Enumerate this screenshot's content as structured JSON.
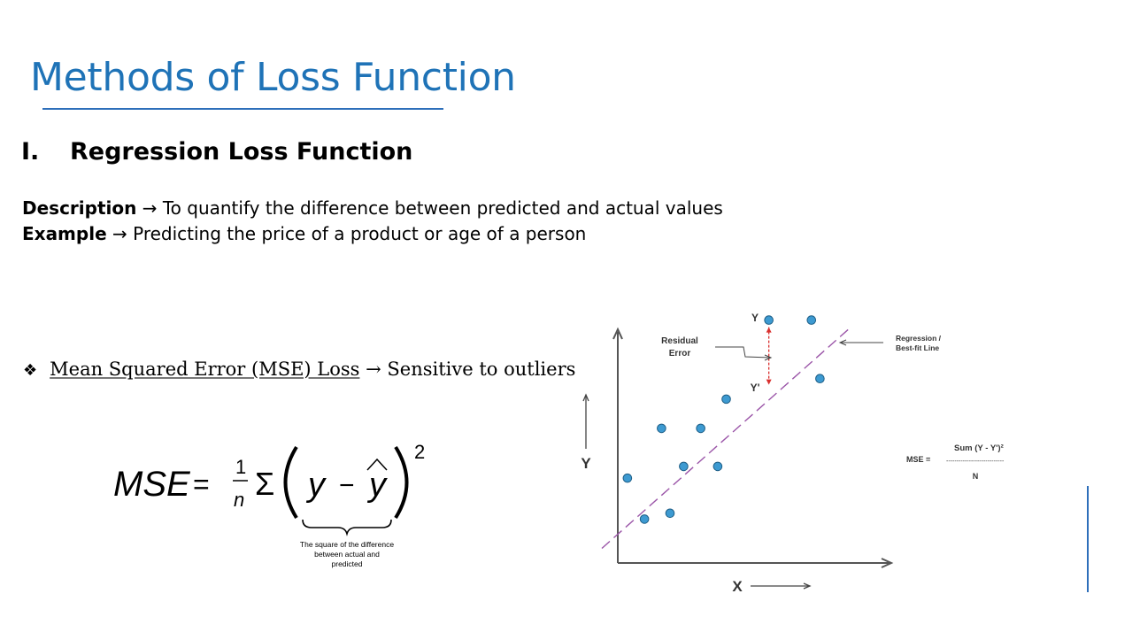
{
  "slide": {
    "title": "Methods of Loss Function",
    "section_number": "I.",
    "section_title": "Regression Loss Function",
    "description_label": "Description",
    "description_text": " → To quantify the difference between predicted and actual values",
    "example_label": "Example",
    "example_text": " → Predicting the price of a product or age of a person",
    "bullet_symbol": "❖",
    "bullet_term": "Mean Squared Error (MSE) Loss",
    "bullet_text": " → Sensitive to outliers"
  },
  "formula": {
    "lhs": "MSE",
    "equals": "=",
    "frac_num": "1",
    "frac_den": "n",
    "sigma": "Σ",
    "y": "y",
    "minus": "−",
    "yhat": "y",
    "power": "2",
    "caption_line1": "The square of the difference",
    "caption_line2": "between actual and",
    "caption_line3": "predicted"
  },
  "chart_data": {
    "type": "scatter",
    "x_axis_label": "X",
    "y_axis_label": "Y",
    "point_label_actual": "Y",
    "point_label_predicted": "Y'",
    "annotation_residual_line1": "Residual",
    "annotation_residual_line2": "Error",
    "annotation_regression_line1": "Regression /",
    "annotation_regression_line2": "Best-fit Line",
    "mse_label": "MSE =",
    "mse_numerator": "Sum (Y - Y')²",
    "mse_dashes": "----------------------------",
    "mse_denominator": "N",
    "points": [
      {
        "x": 0.5,
        "y": 2.9
      },
      {
        "x": 1.5,
        "y": 1.5
      },
      {
        "x": 3.0,
        "y": 1.7
      },
      {
        "x": 2.5,
        "y": 4.6
      },
      {
        "x": 3.8,
        "y": 3.3
      },
      {
        "x": 4.8,
        "y": 4.6
      },
      {
        "x": 5.8,
        "y": 3.3
      },
      {
        "x": 6.3,
        "y": 5.6
      },
      {
        "x": 8.8,
        "y": 8.3
      },
      {
        "x": 11.3,
        "y": 8.3
      },
      {
        "x": 11.8,
        "y": 6.3
      }
    ],
    "regression_line": [
      [
        -1.0,
        0.5
      ],
      [
        13.5,
        8.0
      ]
    ],
    "residual": {
      "x": 8.8,
      "y_actual": 8.3,
      "y_predicted": 6.0
    },
    "xlim": [
      -1,
      15
    ],
    "ylim": [
      0,
      8.5
    ],
    "colors": {
      "points": "#3d9ad1",
      "point_stroke": "#1e5e86",
      "regression": "#9b55a8",
      "residual": "#d9302f",
      "axis": "#555555"
    }
  }
}
